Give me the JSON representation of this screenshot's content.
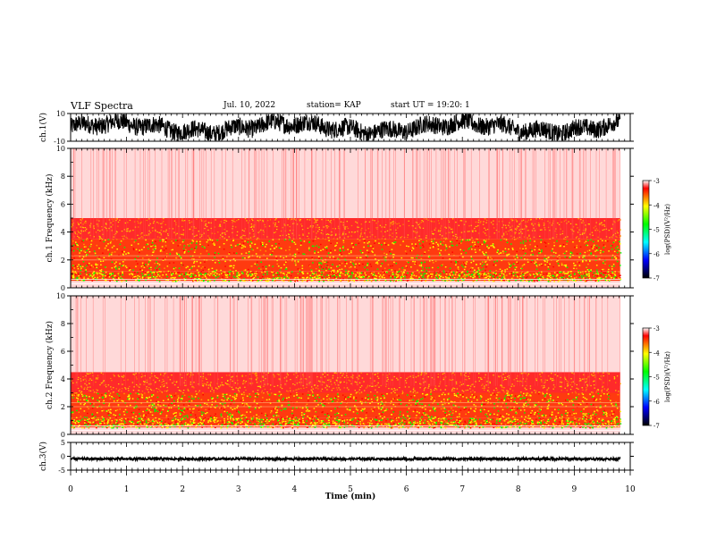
{
  "header": {
    "title": "VLF Spectra",
    "date": "Jul. 10, 2022",
    "station": "station= KAP",
    "start_ut": "start UT = 19:20: 1"
  },
  "chart_data": [
    {
      "type": "line",
      "panel": "ch1-waveform",
      "ylabel": "ch.1(V)",
      "ylim": [
        -10,
        10
      ],
      "yticks": [
        "10",
        "-10"
      ],
      "xlim": [
        0,
        10
      ],
      "data_extent_min": [
        0,
        9.82
      ],
      "trace_color": "#000000",
      "description_values": {
        "amplitude_range_V": [
          -9.5,
          9.5
        ]
      }
    },
    {
      "type": "heatmap",
      "panel": "ch1-spectrogram",
      "ylabel": "ch.1 Frequency (kHz)",
      "ylim": [
        0,
        10
      ],
      "yticks": [
        "0",
        "2",
        "4",
        "6",
        "8",
        "10"
      ],
      "xlim": [
        0,
        10
      ],
      "data_extent_min": [
        0,
        9.82
      ],
      "power_bands_kHz": [
        {
          "from": 0.0,
          "to": 0.5,
          "level": "low"
        },
        {
          "from": 0.5,
          "to": 1.2,
          "level": "high"
        },
        {
          "from": 1.2,
          "to": 3.5,
          "level": "high"
        },
        {
          "from": 3.5,
          "to": 5.0,
          "level": "medium"
        },
        {
          "from": 5.0,
          "to": 10.0,
          "level": "low"
        }
      ],
      "colorbar": {
        "label": "log(PSD)(V²/Hz)",
        "range": [
          -7,
          -3
        ],
        "ticks": [
          "-3",
          "-4",
          "-5",
          "-6",
          "-7"
        ]
      }
    },
    {
      "type": "heatmap",
      "panel": "ch2-spectrogram",
      "ylabel": "ch.2 Frequency (kHz)",
      "ylim": [
        0,
        10
      ],
      "yticks": [
        "0",
        "2",
        "4",
        "6",
        "8",
        "10"
      ],
      "xlim": [
        0,
        10
      ],
      "data_extent_min": [
        0,
        9.82
      ],
      "power_bands_kHz": [
        {
          "from": 0.0,
          "to": 0.5,
          "level": "low"
        },
        {
          "from": 0.5,
          "to": 1.2,
          "level": "high"
        },
        {
          "from": 1.2,
          "to": 3.0,
          "level": "high"
        },
        {
          "from": 3.0,
          "to": 4.5,
          "level": "medium"
        },
        {
          "from": 4.5,
          "to": 10.0,
          "level": "low"
        }
      ],
      "colorbar": {
        "label": "log(PSD)(V²/Hz)",
        "range": [
          -7,
          -3
        ],
        "ticks": [
          "-3",
          "-4",
          "-5",
          "-6",
          "-7"
        ]
      }
    },
    {
      "type": "line",
      "panel": "ch3-waveform",
      "ylabel": "ch.3(V)",
      "ylim": [
        -5,
        5
      ],
      "yticks": [
        "5",
        "0",
        "-5"
      ],
      "xlim": [
        0,
        10
      ],
      "data_extent_min": [
        0,
        9.82
      ],
      "trace_color": "#000000",
      "description_values": {
        "amplitude_range_V": [
          -1.4,
          -0.5
        ]
      }
    }
  ],
  "xaxis": {
    "label": "Time (min)",
    "ticks": [
      "0",
      "1",
      "2",
      "3",
      "4",
      "5",
      "6",
      "7",
      "8",
      "9",
      "10"
    ]
  },
  "colors": {
    "low": "#ffffff",
    "mid": "#ff0000",
    "high": "#ffff00",
    "peak": "#00ff00",
    "scale": [
      "#ff0000",
      "#ffff00",
      "#00ff00",
      "#00ffff",
      "#0000ff",
      "#000000"
    ]
  }
}
